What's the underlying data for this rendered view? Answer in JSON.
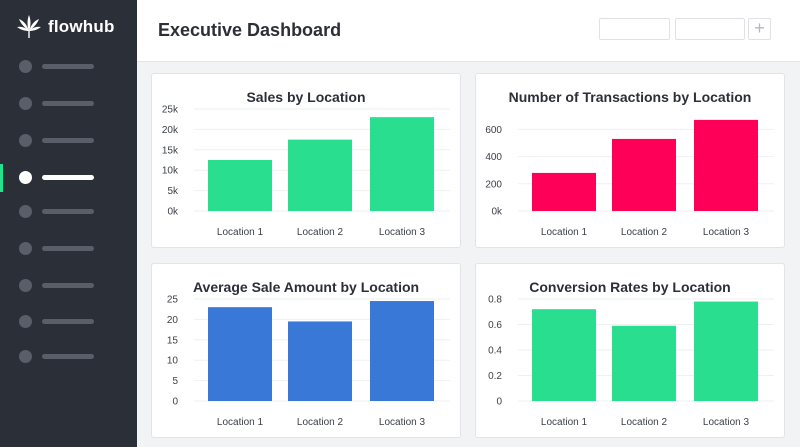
{
  "brand": {
    "name": "flowhub",
    "logo_icon": "cannabis-leaf-icon"
  },
  "header": {
    "title": "Executive Dashboard",
    "add_icon_glyph": "+"
  },
  "sidebar": {
    "items": [
      {
        "icon": "nav-dot-icon",
        "active": false
      },
      {
        "icon": "nav-dot-icon",
        "active": false
      },
      {
        "icon": "nav-dot-icon",
        "active": false
      },
      {
        "icon": "nav-dot-icon",
        "active": true
      },
      {
        "icon": "nav-dot-icon",
        "active": false
      },
      {
        "icon": "nav-dot-icon",
        "active": false
      },
      {
        "icon": "nav-dot-icon",
        "active": false
      },
      {
        "icon": "nav-dot-icon",
        "active": false
      },
      {
        "icon": "nav-dot-icon",
        "active": false
      }
    ]
  },
  "colors": {
    "green": "#2ade8f",
    "pink": "#ff0058",
    "blue": "#3a78d8",
    "sidebar": "#2b2f38"
  },
  "chart_data": [
    {
      "type": "bar",
      "title": "Sales by Location",
      "categories": [
        "Location 1",
        "Location 2",
        "Location 3"
      ],
      "values": [
        12500,
        17500,
        23000
      ],
      "yticks": [
        0,
        5000,
        10000,
        15000,
        20000,
        25000
      ],
      "yticklabels": [
        "0k",
        "5k",
        "10k",
        "15k",
        "20k",
        "25k"
      ],
      "ylim": [
        0,
        25000
      ],
      "color": "#2ade8f",
      "xlabel": "",
      "ylabel": ""
    },
    {
      "type": "bar",
      "title": "Number of Transactions by Location",
      "categories": [
        "Location 1",
        "Location 2",
        "Location 3"
      ],
      "values": [
        280,
        530,
        670
      ],
      "yticks": [
        0,
        200,
        400,
        600
      ],
      "yticklabels": [
        "0k",
        "200",
        "400",
        "600"
      ],
      "ylim": [
        0,
        750
      ],
      "color": "#ff0058",
      "xlabel": "",
      "ylabel": ""
    },
    {
      "type": "bar",
      "title": "Average Sale Amount by Location",
      "categories": [
        "Location 1",
        "Location 2",
        "Location 3"
      ],
      "values": [
        23,
        19.5,
        24.5
      ],
      "yticks": [
        0,
        5,
        10,
        15,
        20,
        25
      ],
      "yticklabels": [
        "0",
        "5",
        "10",
        "15",
        "20",
        "25"
      ],
      "ylim": [
        0,
        25
      ],
      "color": "#3a78d8",
      "xlabel": "",
      "ylabel": ""
    },
    {
      "type": "bar",
      "title": "Conversion Rates by Location",
      "categories": [
        "Location 1",
        "Location 2",
        "Location 3"
      ],
      "values": [
        0.72,
        0.59,
        0.78
      ],
      "yticks": [
        0,
        0.2,
        0.4,
        0.6,
        0.8
      ],
      "yticklabels": [
        "0",
        "0.2",
        "0.4",
        "0.6",
        "0.8"
      ],
      "ylim": [
        0,
        0.8
      ],
      "color": "#2ade8f",
      "xlabel": "",
      "ylabel": ""
    }
  ]
}
